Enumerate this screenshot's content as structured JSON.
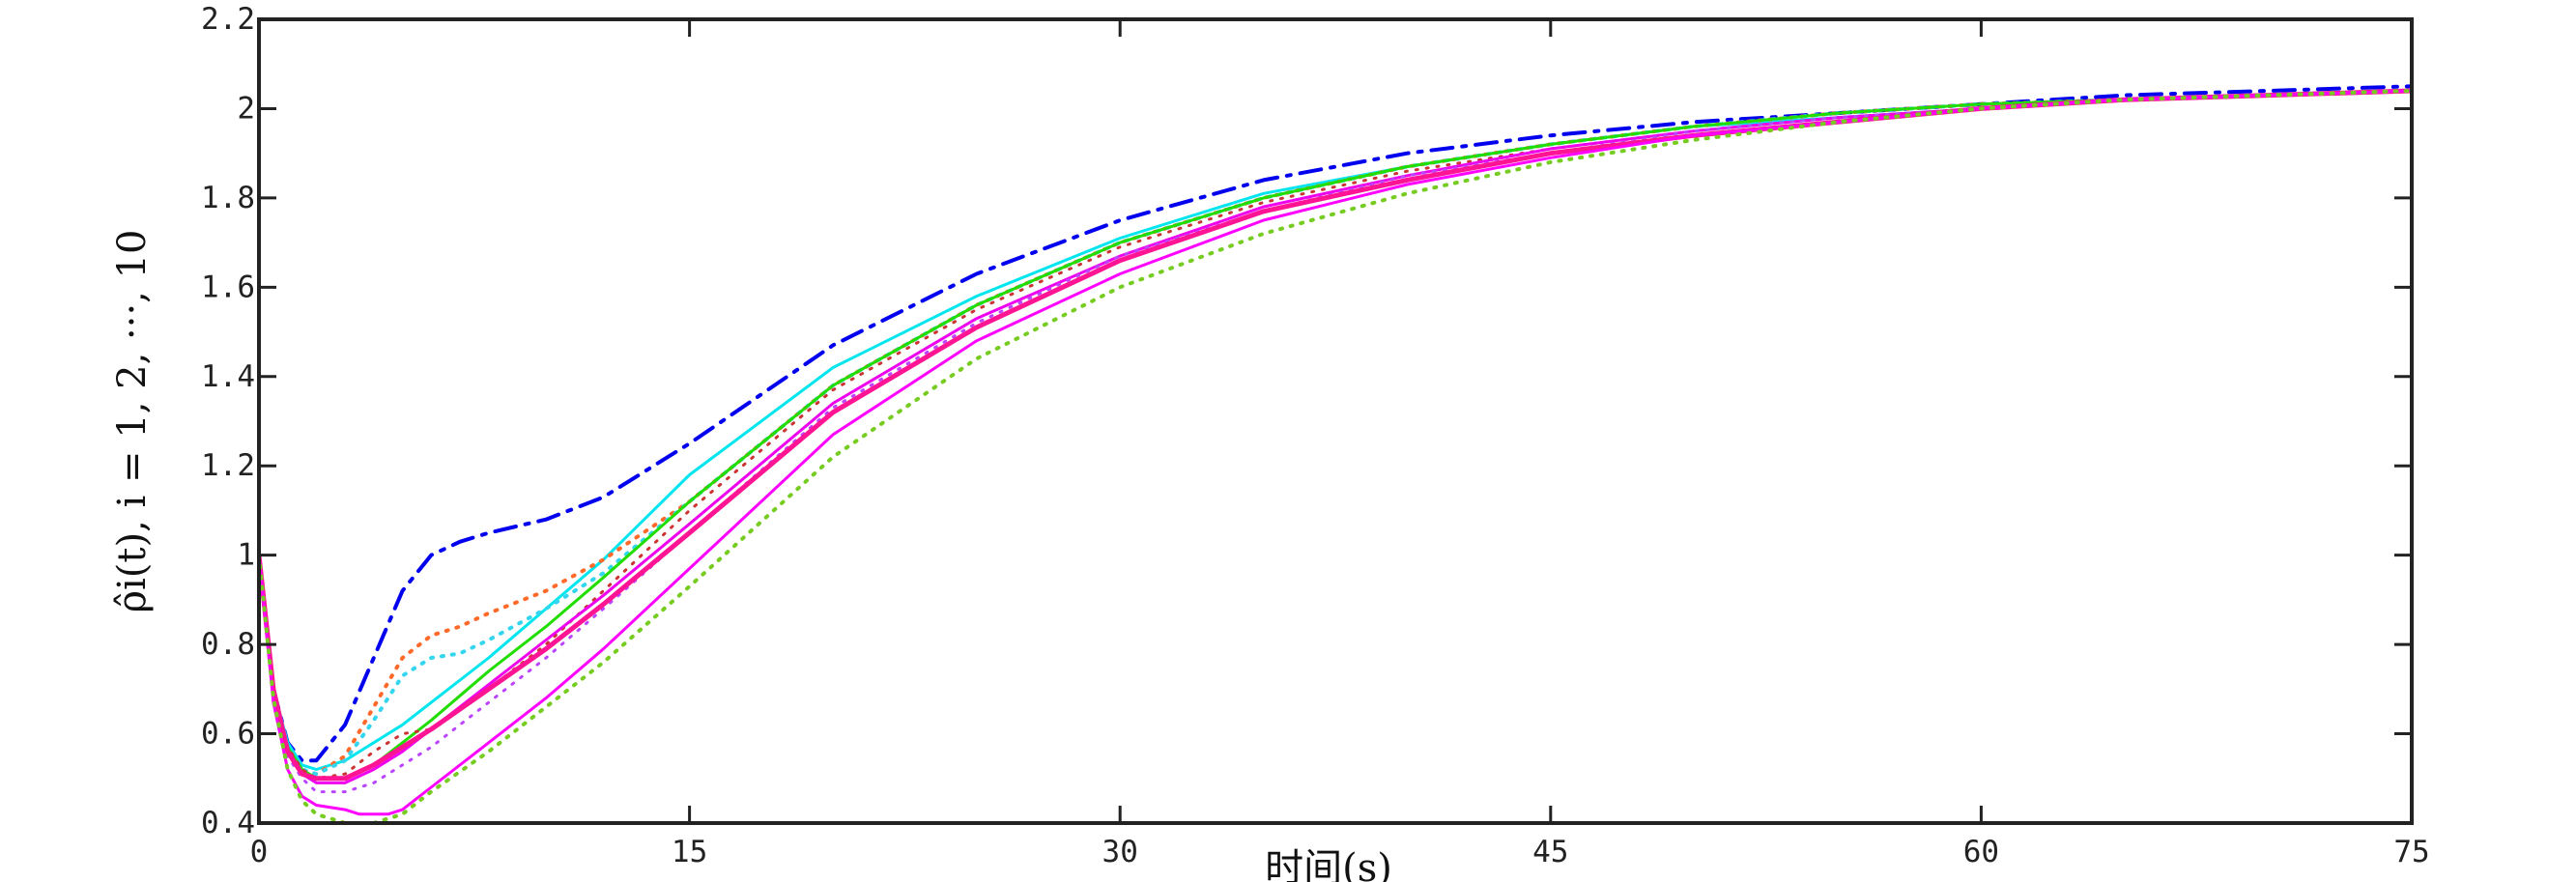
{
  "chart_data": {
    "type": "line",
    "xlabel": "时间(s)",
    "ylabel": "ρ̂i(t), i = 1, 2, ···, 10",
    "xlim": [
      0,
      75
    ],
    "ylim": [
      0.4,
      2.2
    ],
    "xticks": [
      0,
      15,
      30,
      45,
      60,
      75
    ],
    "xtick_labels": [
      "0",
      "15",
      "30",
      "45",
      "60",
      "75"
    ],
    "yticks": [
      0.4,
      0.6,
      0.8,
      1,
      1.2,
      1.4,
      1.6,
      1.8,
      2,
      2.2
    ],
    "ytick_labels": [
      "0.4",
      "0.6",
      "0.8",
      "1",
      "1.2",
      "1.4",
      "1.6",
      "1.8",
      "2",
      "2.2"
    ],
    "grid": false,
    "series": [
      {
        "color": "#0000ee",
        "style": "dashdot",
        "width": 4,
        "x": [
          0,
          0.5,
          1,
          1.5,
          2,
          3,
          4,
          5,
          6,
          7,
          8,
          10,
          12,
          15,
          20,
          25,
          30,
          35,
          40,
          45,
          50,
          55,
          60,
          65,
          70,
          75
        ],
        "y": [
          1.0,
          0.7,
          0.58,
          0.54,
          0.54,
          0.62,
          0.77,
          0.92,
          1.0,
          1.03,
          1.05,
          1.08,
          1.13,
          1.25,
          1.47,
          1.63,
          1.75,
          1.84,
          1.9,
          1.94,
          1.97,
          1.99,
          2.01,
          2.03,
          2.04,
          2.05
        ]
      },
      {
        "color": "#00e5ee",
        "style": "solid",
        "width": 3,
        "x": [
          0,
          0.5,
          1,
          1.5,
          2,
          3,
          4,
          5,
          6,
          8,
          10,
          12,
          15,
          20,
          25,
          30,
          35,
          40,
          45,
          50,
          55,
          60,
          65,
          70,
          75
        ],
        "y": [
          1.0,
          0.7,
          0.58,
          0.53,
          0.52,
          0.54,
          0.58,
          0.62,
          0.67,
          0.77,
          0.88,
          0.99,
          1.18,
          1.42,
          1.58,
          1.71,
          1.81,
          1.87,
          1.92,
          1.96,
          1.98,
          2.0,
          2.02,
          2.03,
          2.04
        ]
      },
      {
        "color": "#ff6a2a",
        "style": "dotted",
        "width": 4,
        "x": [
          0,
          0.5,
          1,
          1.5,
          2,
          3,
          4,
          5,
          6,
          7,
          8,
          10,
          12,
          15,
          20,
          25,
          30,
          35,
          40,
          45,
          50,
          55,
          60,
          65,
          70,
          75
        ],
        "y": [
          1.0,
          0.7,
          0.57,
          0.52,
          0.51,
          0.55,
          0.66,
          0.77,
          0.82,
          0.84,
          0.87,
          0.92,
          0.99,
          1.12,
          1.38,
          1.56,
          1.7,
          1.8,
          1.87,
          1.92,
          1.96,
          1.99,
          2.01,
          2.02,
          2.03,
          2.04
        ]
      },
      {
        "color": "#33d6ee",
        "style": "dotted",
        "width": 4,
        "x": [
          0,
          0.5,
          1,
          1.5,
          2,
          3,
          4,
          5,
          6,
          7,
          8,
          10,
          12,
          15,
          20,
          25,
          30,
          35,
          40,
          45,
          50,
          55,
          60,
          65,
          70,
          75
        ],
        "y": [
          1.0,
          0.7,
          0.57,
          0.52,
          0.51,
          0.54,
          0.63,
          0.73,
          0.77,
          0.78,
          0.81,
          0.88,
          0.96,
          1.12,
          1.38,
          1.56,
          1.7,
          1.8,
          1.87,
          1.92,
          1.96,
          1.99,
          2.01,
          2.02,
          2.03,
          2.04
        ]
      },
      {
        "color": "#22dd00",
        "style": "solid",
        "width": 3,
        "x": [
          0,
          0.5,
          1,
          1.5,
          2,
          3,
          4,
          5,
          6,
          8,
          10,
          12,
          15,
          20,
          25,
          30,
          35,
          40,
          45,
          50,
          55,
          60,
          65,
          70,
          75
        ],
        "y": [
          1.0,
          0.7,
          0.57,
          0.52,
          0.5,
          0.5,
          0.53,
          0.58,
          0.63,
          0.74,
          0.84,
          0.95,
          1.12,
          1.38,
          1.56,
          1.7,
          1.8,
          1.87,
          1.92,
          1.96,
          1.99,
          2.01,
          2.02,
          2.03,
          2.04
        ]
      },
      {
        "color": "#cc3333",
        "style": "dotted",
        "width": 3,
        "x": [
          0,
          0.5,
          1,
          1.5,
          2,
          3,
          4,
          5,
          6,
          8,
          10,
          12,
          15,
          20,
          25,
          30,
          35,
          40,
          45,
          50,
          55,
          60,
          65,
          70,
          75
        ],
        "y": [
          1.0,
          0.7,
          0.57,
          0.52,
          0.5,
          0.51,
          0.56,
          0.6,
          0.61,
          0.7,
          0.8,
          0.92,
          1.1,
          1.37,
          1.55,
          1.69,
          1.79,
          1.86,
          1.91,
          1.95,
          1.98,
          2.0,
          2.02,
          2.03,
          2.04
        ]
      },
      {
        "color": "#ee00ee",
        "style": "solid",
        "width": 3,
        "x": [
          0,
          0.5,
          1,
          1.5,
          2,
          3,
          4,
          5,
          6,
          8,
          10,
          12,
          15,
          20,
          25,
          30,
          35,
          40,
          45,
          50,
          55,
          60,
          65,
          70,
          75
        ],
        "y": [
          1.0,
          0.7,
          0.56,
          0.51,
          0.49,
          0.49,
          0.52,
          0.56,
          0.61,
          0.71,
          0.81,
          0.91,
          1.07,
          1.34,
          1.53,
          1.67,
          1.78,
          1.85,
          1.91,
          1.95,
          1.98,
          2.0,
          2.02,
          2.03,
          2.04
        ]
      },
      {
        "color": "#bb44ff",
        "style": "dotted",
        "width": 3,
        "x": [
          0,
          0.5,
          1,
          1.5,
          2,
          3,
          4,
          5,
          6,
          8,
          10,
          12,
          15,
          20,
          25,
          30,
          35,
          40,
          45,
          50,
          55,
          60,
          65,
          70,
          75
        ],
        "y": [
          1.0,
          0.69,
          0.55,
          0.5,
          0.47,
          0.47,
          0.49,
          0.53,
          0.57,
          0.67,
          0.77,
          0.88,
          1.05,
          1.33,
          1.52,
          1.67,
          1.77,
          1.85,
          1.9,
          1.95,
          1.98,
          2.0,
          2.02,
          2.03,
          2.04
        ]
      },
      {
        "color": "#ff1493",
        "style": "solid",
        "width": 5,
        "x": [
          0,
          0.5,
          1,
          1.5,
          2,
          3,
          4,
          5,
          6,
          8,
          10,
          12,
          15,
          20,
          25,
          30,
          35,
          40,
          45,
          50,
          55,
          60,
          65,
          70,
          75
        ],
        "y": [
          1.0,
          0.7,
          0.56,
          0.51,
          0.5,
          0.5,
          0.53,
          0.57,
          0.61,
          0.7,
          0.79,
          0.89,
          1.05,
          1.32,
          1.51,
          1.66,
          1.77,
          1.84,
          1.9,
          1.94,
          1.97,
          2.0,
          2.02,
          2.03,
          2.04
        ]
      },
      {
        "color": "#ff00ff",
        "style": "solid",
        "width": 3,
        "x": [
          0,
          0.5,
          1,
          1.5,
          2,
          3,
          3.5,
          4,
          4.5,
          5,
          6,
          8,
          10,
          12,
          15,
          20,
          25,
          30,
          35,
          40,
          45,
          50,
          55,
          60,
          65,
          70,
          75
        ],
        "y": [
          1.0,
          0.67,
          0.52,
          0.46,
          0.44,
          0.43,
          0.42,
          0.42,
          0.42,
          0.43,
          0.48,
          0.58,
          0.68,
          0.79,
          0.97,
          1.27,
          1.48,
          1.63,
          1.75,
          1.83,
          1.89,
          1.94,
          1.97,
          2.0,
          2.02,
          2.03,
          2.04
        ]
      },
      {
        "color": "#77cc22",
        "style": "dotted",
        "width": 4,
        "x": [
          0,
          0.5,
          1,
          1.5,
          2,
          3,
          4,
          5,
          6,
          8,
          10,
          12,
          15,
          20,
          25,
          30,
          35,
          40,
          45,
          50,
          55,
          60,
          65,
          70,
          75
        ],
        "y": [
          1.0,
          0.68,
          0.52,
          0.45,
          0.42,
          0.4,
          0.4,
          0.42,
          0.47,
          0.56,
          0.66,
          0.76,
          0.93,
          1.22,
          1.44,
          1.6,
          1.72,
          1.81,
          1.88,
          1.93,
          1.97,
          2.0,
          2.02,
          2.03,
          2.04
        ]
      }
    ]
  }
}
